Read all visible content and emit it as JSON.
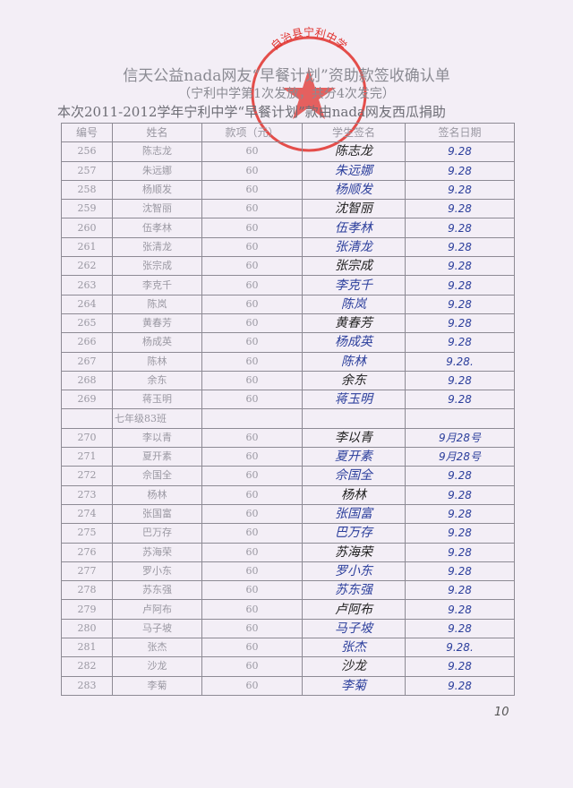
{
  "title": "信天公益nada网友“早餐计划”资助款签收确认单",
  "subtitle": "（宁利中学第1次发放，共分4次发完）",
  "note": "本次2011-2012学年宁利中学“早餐计划”款由nada网友西瓜捐助",
  "headers": [
    "编号",
    "姓名",
    "款项（元）",
    "学生签名",
    "签名日期"
  ],
  "stamp_text": "自治县宁利中学",
  "stamp_color": "#e0302c",
  "signature_color": "#2c3f9c",
  "rows_a": [
    {
      "no": "256",
      "name": "陈志龙",
      "amount": "60",
      "sig": "陈志龙",
      "date": "9.28"
    },
    {
      "no": "257",
      "name": "朱远娜",
      "amount": "60",
      "sig": "朱远娜",
      "date": "9.28"
    },
    {
      "no": "258",
      "name": "杨顺发",
      "amount": "60",
      "sig": "杨顺发",
      "date": "9.28"
    },
    {
      "no": "259",
      "name": "沈智丽",
      "amount": "60",
      "sig": "沈智丽",
      "date": "9.28"
    },
    {
      "no": "260",
      "name": "伍孝林",
      "amount": "60",
      "sig": "伍孝林",
      "date": "9.28"
    },
    {
      "no": "261",
      "name": "张清龙",
      "amount": "60",
      "sig": "张清龙",
      "date": "9.28"
    },
    {
      "no": "262",
      "name": "张宗成",
      "amount": "60",
      "sig": "张宗成",
      "date": "9.28"
    },
    {
      "no": "263",
      "name": "李克千",
      "amount": "60",
      "sig": "李克千",
      "date": "9.28"
    },
    {
      "no": "264",
      "name": "陈岚",
      "amount": "60",
      "sig": "陈岚",
      "date": "9.28"
    },
    {
      "no": "265",
      "name": "黄春芳",
      "amount": "60",
      "sig": "黄春芳",
      "date": "9.28"
    },
    {
      "no": "266",
      "name": "杨成英",
      "amount": "60",
      "sig": "杨成英",
      "date": "9.28"
    },
    {
      "no": "267",
      "name": "陈林",
      "amount": "60",
      "sig": "陈林",
      "date": "9.28."
    },
    {
      "no": "268",
      "name": "余东",
      "amount": "60",
      "sig": "余东",
      "date": "9.28"
    },
    {
      "no": "269",
      "name": "蒋玉明",
      "amount": "60",
      "sig": "蒋玉明",
      "date": "9.28"
    }
  ],
  "class_label": "七年级83班",
  "rows_b": [
    {
      "no": "270",
      "name": "李以青",
      "amount": "60",
      "sig": "李以青",
      "date": "9月28号"
    },
    {
      "no": "271",
      "name": "夏开素",
      "amount": "60",
      "sig": "夏开素",
      "date": "9月28号"
    },
    {
      "no": "272",
      "name": "佘国全",
      "amount": "60",
      "sig": "佘国全",
      "date": "9.28"
    },
    {
      "no": "273",
      "name": "杨林",
      "amount": "60",
      "sig": "杨林",
      "date": "9.28"
    },
    {
      "no": "274",
      "name": "张国富",
      "amount": "60",
      "sig": "张国富",
      "date": "9.28"
    },
    {
      "no": "275",
      "name": "巴万存",
      "amount": "60",
      "sig": "巴万存",
      "date": "9.28"
    },
    {
      "no": "276",
      "name": "苏海荣",
      "amount": "60",
      "sig": "苏海荣",
      "date": "9.28"
    },
    {
      "no": "277",
      "name": "罗小东",
      "amount": "60",
      "sig": "罗小东",
      "date": "9.28"
    },
    {
      "no": "278",
      "name": "苏东强",
      "amount": "60",
      "sig": "苏东强",
      "date": "9.28"
    },
    {
      "no": "279",
      "name": "卢阿布",
      "amount": "60",
      "sig": "卢阿布",
      "date": "9.28"
    },
    {
      "no": "280",
      "name": "马子坡",
      "amount": "60",
      "sig": "马子坡",
      "date": "9.28"
    },
    {
      "no": "281",
      "name": "张杰",
      "amount": "60",
      "sig": "张杰",
      "date": "9.28."
    },
    {
      "no": "282",
      "name": "沙龙",
      "amount": "60",
      "sig": "沙龙",
      "date": "9.28"
    },
    {
      "no": "283",
      "name": "李菊",
      "amount": "60",
      "sig": "李菊",
      "date": "9.28"
    }
  ],
  "page_number": "10"
}
